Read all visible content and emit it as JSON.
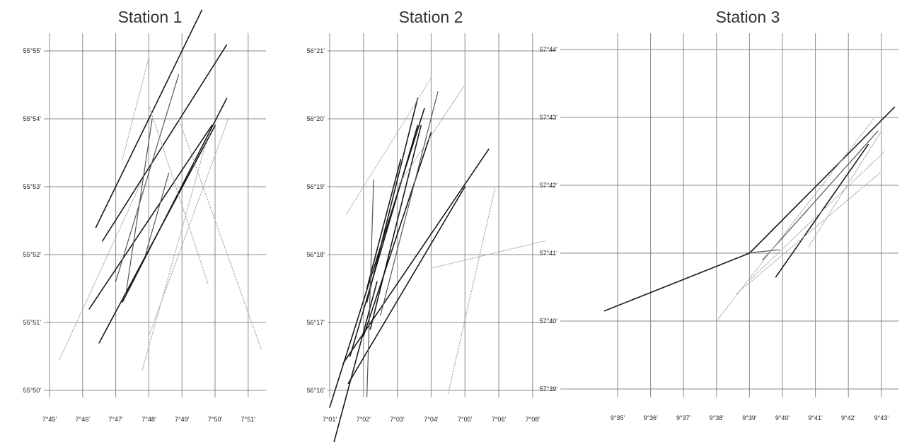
{
  "colors": {
    "background": "#ffffff",
    "grid": "#8a8a8a",
    "track_dark": "#1a1a1a",
    "track_mid": "#555555",
    "track_light": "#aaaaaa",
    "text": "#222222"
  },
  "chart_data": [
    {
      "type": "line",
      "title": "Station 1",
      "xlabel": "",
      "ylabel": "",
      "grid": true,
      "x_ticks": [
        "7°45'",
        "7°46'",
        "7°47'",
        "7°48'",
        "7°49'",
        "7°50'",
        "7°51'"
      ],
      "y_ticks": [
        "55°50'",
        "55°51'",
        "55°52'",
        "55°53'",
        "55°54'",
        "55°55'"
      ],
      "xlim": [
        -0.5,
        6.4
      ],
      "ylim": [
        -0.25,
        5.3
      ],
      "series": [
        {
          "style": "dark",
          "x": [
            1.6,
            5.35
          ],
          "y": [
            2.2,
            5.09
          ]
        },
        {
          "style": "dark",
          "x": [
            1.4,
            4.6
          ],
          "y": [
            2.4,
            5.6
          ]
        },
        {
          "style": "dark",
          "x": [
            1.5,
            5.0
          ],
          "y": [
            0.7,
            3.9
          ]
        },
        {
          "style": "dark",
          "x": [
            1.2,
            4.9
          ],
          "y": [
            1.2,
            3.9
          ]
        },
        {
          "style": "dark",
          "x": [
            2.2,
            5.35
          ],
          "y": [
            1.3,
            4.3
          ]
        },
        {
          "style": "mid",
          "x": [
            2.0,
            3.9
          ],
          "y": [
            1.6,
            4.65
          ]
        },
        {
          "style": "mid",
          "x": [
            2.3,
            3.1
          ],
          "y": [
            1.4,
            4.0
          ]
        },
        {
          "style": "mid",
          "x": [
            2.9,
            3.6
          ],
          "y": [
            2.0,
            3.2
          ]
        },
        {
          "style": "light",
          "x": [
            0.3,
            2.8
          ],
          "y": [
            0.45,
            3.1
          ]
        },
        {
          "style": "light",
          "x": [
            2.2,
            3.0
          ],
          "y": [
            3.4,
            4.9
          ]
        },
        {
          "style": "light",
          "x": [
            3.0,
            5.4
          ],
          "y": [
            0.8,
            4.0
          ]
        },
        {
          "style": "light",
          "x": [
            3.9,
            6.4
          ],
          "y": [
            4.0,
            0.6
          ]
        },
        {
          "style": "light",
          "x": [
            3.0,
            4.8
          ],
          "y": [
            4.2,
            1.55
          ]
        },
        {
          "style": "light",
          "x": [
            2.8,
            4.7
          ],
          "y": [
            0.3,
            3.6
          ]
        }
      ]
    },
    {
      "type": "line",
      "title": "Station 2",
      "xlabel": "",
      "ylabel": "",
      "grid": true,
      "x_ticks": [
        "7°01'",
        "7°02'",
        "7°03'",
        "7°04'",
        "7°05'",
        "7°06'",
        "7°08'"
      ],
      "y_ticks": [
        "56°16'",
        "56°17'",
        "56°18'",
        "56°19'",
        "56°20'",
        "56°21'"
      ],
      "xlim": [
        -0.2,
        6.35
      ],
      "ylim": [
        -0.3,
        5.3
      ],
      "series": [
        {
          "style": "dark",
          "x": [
            0.0,
            2.8
          ],
          "y": [
            -0.25,
            4.15
          ]
        },
        {
          "style": "dark",
          "x": [
            0.4,
            4.7
          ],
          "y": [
            0.4,
            3.55
          ]
        },
        {
          "style": "dark",
          "x": [
            0.6,
            2.6
          ],
          "y": [
            0.5,
            3.9
          ]
        },
        {
          "style": "dark",
          "x": [
            0.55,
            4.0
          ],
          "y": [
            0.1,
            3.0
          ]
        },
        {
          "style": "dark",
          "x": [
            1.0,
            3.0
          ],
          "y": [
            0.8,
            3.8
          ]
        },
        {
          "style": "dark",
          "x": [
            1.2,
            2.7
          ],
          "y": [
            0.9,
            3.9
          ]
        },
        {
          "style": "dark",
          "x": [
            1.1,
            2.1
          ],
          "y": [
            1.5,
            3.4
          ]
        },
        {
          "style": "dark",
          "x": [
            1.1,
            2.6
          ],
          "y": [
            1.3,
            4.3
          ]
        },
        {
          "style": "dark",
          "x": [
            0.0,
            1.4
          ],
          "y": [
            -1.0,
            1.6
          ]
        },
        {
          "style": "mid",
          "x": [
            1.1,
            1.3
          ],
          "y": [
            -0.1,
            3.1
          ]
        },
        {
          "style": "mid",
          "x": [
            1.5,
            3.2
          ],
          "y": [
            1.1,
            4.4
          ]
        },
        {
          "style": "light",
          "x": [
            3.5,
            4.9
          ],
          "y": [
            -0.05,
            3.0
          ]
        },
        {
          "style": "light",
          "x": [
            0.5,
            3.0
          ],
          "y": [
            2.6,
            4.6
          ]
        },
        {
          "style": "light",
          "x": [
            3.0,
            6.35
          ],
          "y": [
            1.8,
            2.2
          ]
        },
        {
          "style": "light",
          "x": [
            2.0,
            4.0
          ],
          "y": [
            3.0,
            4.5
          ]
        }
      ]
    },
    {
      "type": "line",
      "title": "Station 3",
      "xlabel": "",
      "ylabel": "",
      "grid": true,
      "x_ticks": [
        "9°35'",
        "9°36'",
        "9°37'",
        "9°38'",
        "9°39'",
        "9°40'",
        "9°41'",
        "9°42'",
        "9°43'"
      ],
      "y_ticks": [
        "57°39'",
        "57°40'",
        "57°41'",
        "57°42'",
        "57°43'",
        "57°44'"
      ],
      "xlim": [
        -0.4,
        8.4
      ],
      "ylim": [
        -0.35,
        5.3
      ],
      "series": [
        {
          "style": "dark",
          "x": [
            -0.4,
            4.0
          ],
          "y": [
            1.15,
            2.0
          ]
        },
        {
          "style": "dark",
          "x": [
            4.0,
            8.4
          ],
          "y": [
            2.0,
            4.15
          ]
        },
        {
          "style": "dark",
          "x": [
            4.8,
            7.6
          ],
          "y": [
            1.65,
            3.6
          ]
        },
        {
          "style": "mid",
          "x": [
            4.4,
            7.9
          ],
          "y": [
            1.9,
            3.8
          ]
        },
        {
          "style": "mid",
          "x": [
            3.9,
            4.9
          ],
          "y": [
            2.0,
            2.05
          ]
        },
        {
          "style": "light",
          "x": [
            3.0,
            7.8
          ],
          "y": [
            1.0,
            4.0
          ]
        },
        {
          "style": "light",
          "x": [
            3.6,
            8.0
          ],
          "y": [
            1.4,
            3.2
          ]
        },
        {
          "style": "light",
          "x": [
            4.0,
            8.1
          ],
          "y": [
            1.6,
            3.5
          ]
        },
        {
          "style": "light",
          "x": [
            5.8,
            8.0
          ],
          "y": [
            2.1,
            3.8
          ]
        }
      ]
    }
  ]
}
